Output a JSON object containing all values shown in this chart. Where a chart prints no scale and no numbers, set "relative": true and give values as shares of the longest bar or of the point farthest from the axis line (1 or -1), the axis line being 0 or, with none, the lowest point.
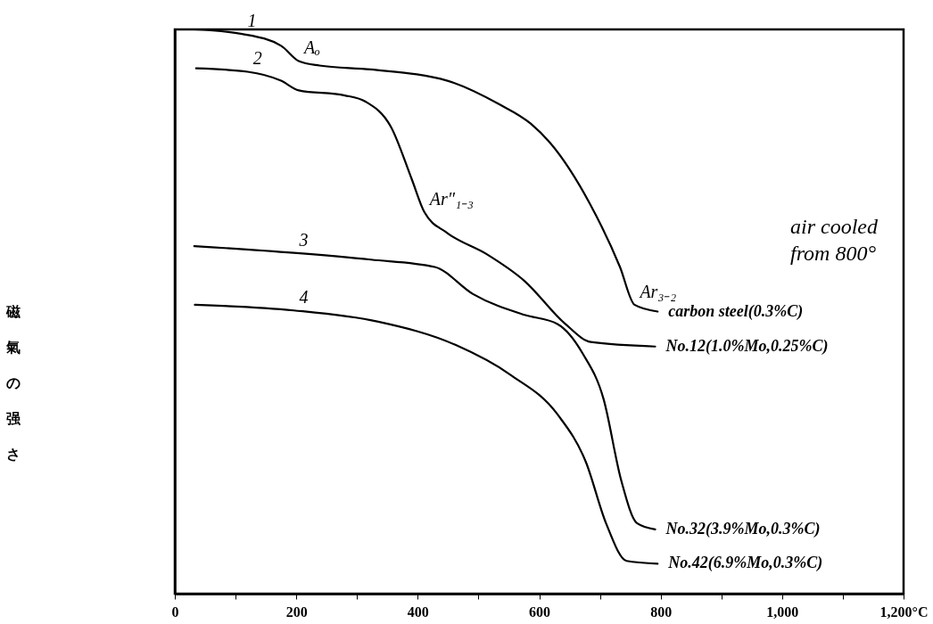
{
  "chart_data": {
    "type": "line",
    "relative": true,
    "ylabel": "磁氣の强さ",
    "xlim": [
      0,
      1200
    ],
    "xticks": [
      0,
      {
        "value": 100,
        "label": null
      },
      200,
      {
        "value": 300,
        "label": null
      },
      400,
      {
        "value": 500,
        "label": null
      },
      600,
      {
        "value": 700,
        "label": null
      },
      800,
      {
        "value": 900,
        "label": null
      },
      {
        "value": 1000,
        "label": "1,000"
      },
      {
        "value": 1100,
        "label": null
      },
      {
        "value": 1200,
        "label": "1,200°C"
      }
    ],
    "grid": false,
    "legend": false,
    "marker": "none",
    "line_style": "solid",
    "series": [
      {
        "name": "carbon steel(0.3%C)",
        "color": "#000000",
        "x": [
          32,
          111,
          175,
          204,
          238,
          323,
          449,
          533,
          586,
          618,
          684,
          733,
          757,
          795
        ],
        "values": [
          1.0,
          0.992,
          0.971,
          0.944,
          0.936,
          0.929,
          0.909,
          0.868,
          0.833,
          0.799,
          0.69,
          0.579,
          0.512,
          0.5
        ]
      },
      {
        "name": "No.12(1.0%Mo,0.25%C)",
        "color": "#000000",
        "x": [
          35,
          120,
          175,
          204,
          280,
          314,
          356,
          390,
          411,
          449,
          513,
          576,
          643,
          685,
          791
        ],
        "values": [
          0.931,
          0.925,
          0.909,
          0.892,
          0.883,
          0.872,
          0.827,
          0.735,
          0.676,
          0.639,
          0.602,
          0.554,
          0.478,
          0.446,
          0.438
        ]
      },
      {
        "name": "No.32(3.9%Mo,0.3%C)",
        "color": "#000000",
        "x": [
          32,
          196,
          323,
          428,
          491,
          576,
          630,
          672,
          706,
          735,
          761,
          791
        ],
        "values": [
          0.616,
          0.604,
          0.592,
          0.579,
          0.531,
          0.494,
          0.478,
          0.425,
          0.345,
          0.201,
          0.125,
          0.114
        ]
      },
      {
        "name": "No.42(6.9%Mo,0.3%C)",
        "color": "#000000",
        "x": [
          33,
          196,
          335,
          462,
          554,
          630,
          677,
          710,
          744,
          795
        ],
        "values": [
          0.512,
          0.502,
          0.482,
          0.441,
          0.387,
          0.318,
          0.233,
          0.125,
          0.058,
          0.053
        ]
      }
    ],
    "annotations": [
      {
        "text": "1",
        "x": 111,
        "y": 0.992
      },
      {
        "text": "2",
        "x": 120,
        "y": 0.925
      },
      {
        "text": "3",
        "x": 196,
        "y": 0.604
      },
      {
        "text": "4",
        "x": 196,
        "y": 0.502
      },
      {
        "text": "Aₒ",
        "x": 204,
        "y": 0.944
      },
      {
        "text": "Ar″₁₋₃",
        "x": 411,
        "y": 0.676
      },
      {
        "text": "Ar₃₋₂",
        "x": 757,
        "y": 0.512
      },
      "air cooled",
      "from 800°"
    ]
  }
}
